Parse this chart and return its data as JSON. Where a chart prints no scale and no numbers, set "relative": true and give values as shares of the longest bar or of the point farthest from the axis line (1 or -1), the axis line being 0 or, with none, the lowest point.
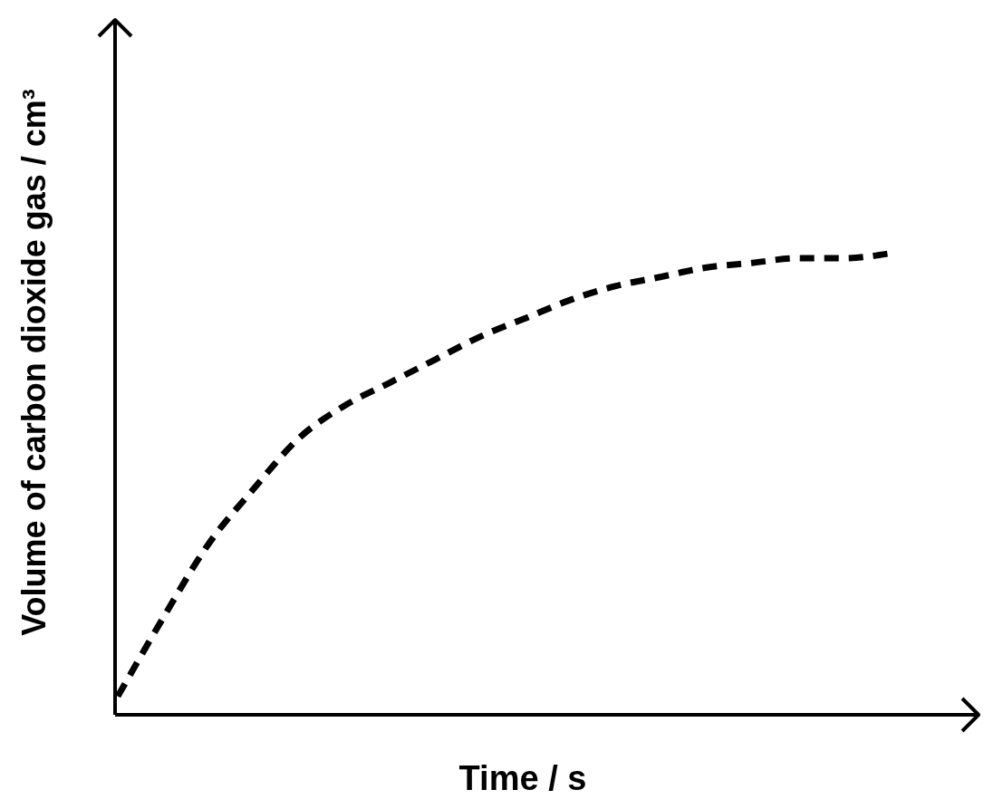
{
  "chart_data": {
    "type": "line",
    "relative": true,
    "xlabel": "Time / s",
    "ylabel": "Volume of carbon dioxide gas / cm³",
    "categories": [
      null,
      null,
      null,
      null,
      null,
      null,
      null,
      null,
      null,
      null,
      null,
      null,
      null,
      null,
      null,
      null,
      null,
      null,
      null,
      null
    ],
    "series": [
      {
        "color": "#000000",
        "values": [
          0.04,
          0.21,
          0.37,
          0.49,
          0.6,
          0.67,
          0.72,
          0.77,
          0.82,
          0.86,
          0.9,
          0.93,
          0.95,
          0.97,
          0.98,
          0.99,
          0.99,
          1,
          null,
          null
        ]
      }
    ],
    "line_style": "dashed"
  }
}
